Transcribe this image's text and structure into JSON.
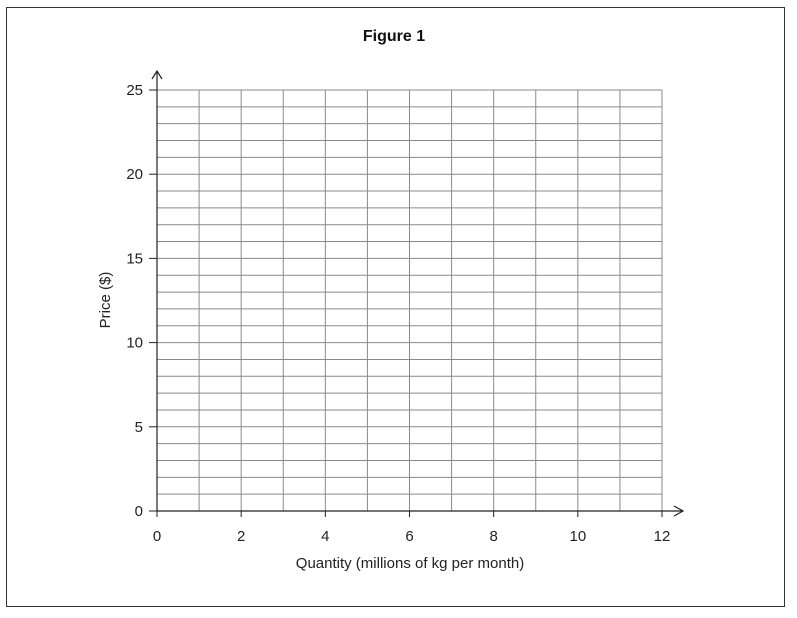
{
  "chart_data": {
    "type": "line",
    "title": "Figure 1",
    "xlabel": "Quantity (millions of kg per month)",
    "ylabel": "Price ($)",
    "xlim": [
      0,
      12
    ],
    "ylim": [
      0,
      25
    ],
    "x_ticks": [
      0,
      2,
      4,
      6,
      8,
      10,
      12
    ],
    "y_ticks": [
      0,
      5,
      10,
      15,
      20,
      25
    ],
    "x_grid_step": 1,
    "y_grid_step": 1,
    "grid": true,
    "series": [],
    "colors": {
      "grid": "#8a8a8a",
      "axis": "#222222",
      "text": "#222222"
    }
  }
}
